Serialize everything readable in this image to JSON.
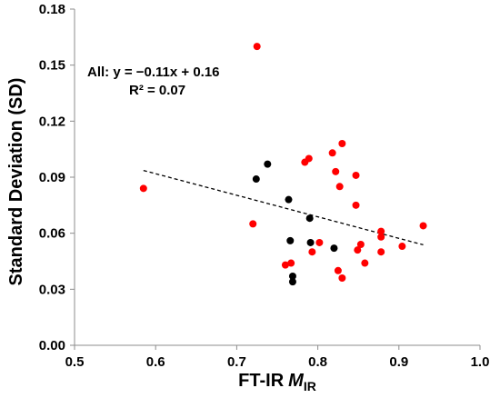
{
  "chart_data": {
    "type": "scatter",
    "xlabel": "FT-IR",
    "xlabel_italic": "M",
    "xlabel_sub": "IR",
    "ylabel": "Standard Deviation (SD)",
    "xlim": [
      0.5,
      1.0
    ],
    "ylim": [
      0.0,
      0.18
    ],
    "xticks": [
      0.5,
      0.6,
      0.7,
      0.8,
      0.9,
      1.0
    ],
    "yticks": [
      0.0,
      0.03,
      0.06,
      0.09,
      0.12,
      0.15,
      0.18
    ],
    "xtick_labels": [
      "0.5",
      "0.6",
      "0.7",
      "0.8",
      "0.9",
      "1.0"
    ],
    "ytick_labels": [
      "0.00",
      "0.03",
      "0.06",
      "0.09",
      "0.12",
      "0.15",
      "0.18"
    ],
    "grid": false,
    "series": [
      {
        "color": "#000000",
        "points": [
          [
            0.724,
            0.089
          ],
          [
            0.738,
            0.097
          ],
          [
            0.764,
            0.078
          ],
          [
            0.766,
            0.056
          ],
          [
            0.79,
            0.068
          ],
          [
            0.791,
            0.055
          ],
          [
            0.82,
            0.052
          ],
          [
            0.769,
            0.037
          ],
          [
            0.769,
            0.034
          ]
        ]
      },
      {
        "color": "#ff0000",
        "points": [
          [
            0.585,
            0.084
          ],
          [
            0.725,
            0.16
          ],
          [
            0.72,
            0.065
          ],
          [
            0.76,
            0.043
          ],
          [
            0.767,
            0.044
          ],
          [
            0.784,
            0.098
          ],
          [
            0.789,
            0.1
          ],
          [
            0.793,
            0.05
          ],
          [
            0.802,
            0.055
          ],
          [
            0.818,
            0.103
          ],
          [
            0.822,
            0.093
          ],
          [
            0.825,
            0.04
          ],
          [
            0.827,
            0.085
          ],
          [
            0.83,
            0.108
          ],
          [
            0.83,
            0.036
          ],
          [
            0.847,
            0.091
          ],
          [
            0.847,
            0.075
          ],
          [
            0.849,
            0.051
          ],
          [
            0.853,
            0.054
          ],
          [
            0.858,
            0.044
          ],
          [
            0.878,
            0.061
          ],
          [
            0.878,
            0.058
          ],
          [
            0.878,
            0.05
          ],
          [
            0.904,
            0.053
          ],
          [
            0.93,
            0.064
          ]
        ]
      }
    ],
    "trendline": {
      "style": "dashed",
      "color": "#000000",
      "x": [
        0.585,
        0.93
      ],
      "y": [
        0.0936,
        0.0538
      ]
    },
    "annotation": {
      "equation": "All: y = −0.11x + 0.16",
      "r2": "R² = 0.07"
    }
  }
}
